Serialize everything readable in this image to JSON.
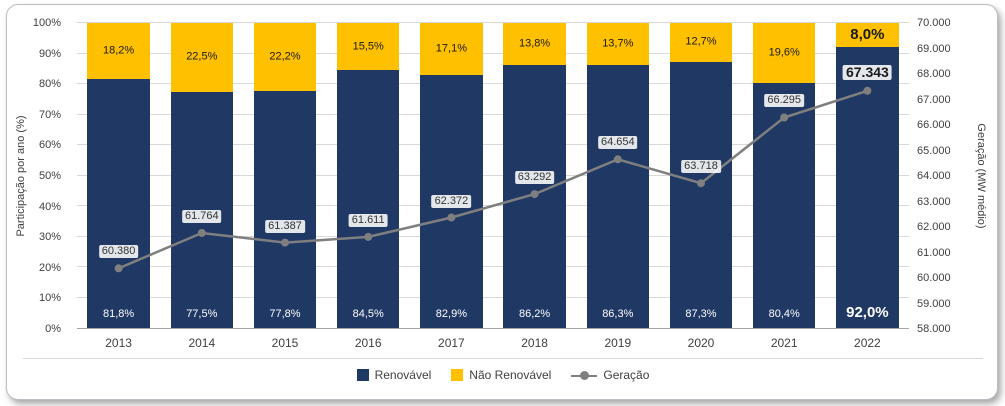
{
  "chart_data": {
    "type": "bar",
    "subtype": "stacked-percent-with-line",
    "categories": [
      "2013",
      "2014",
      "2015",
      "2016",
      "2017",
      "2018",
      "2019",
      "2020",
      "2021",
      "2022"
    ],
    "series": [
      {
        "name": "Renovável",
        "type": "bar",
        "color": "#1f3864",
        "values": [
          81.8,
          77.5,
          77.8,
          84.5,
          82.9,
          86.2,
          86.3,
          87.3,
          80.4,
          92.0
        ],
        "labels": [
          "81,8%",
          "77,5%",
          "77,8%",
          "84,5%",
          "82,9%",
          "86,2%",
          "86,3%",
          "87,3%",
          "80,4%",
          "92,0%"
        ]
      },
      {
        "name": "Não Renovável",
        "type": "bar",
        "color": "#ffc000",
        "values": [
          18.2,
          22.5,
          22.2,
          15.5,
          17.1,
          13.8,
          13.7,
          12.7,
          19.6,
          8.0
        ],
        "labels": [
          "18,2%",
          "22,5%",
          "22,2%",
          "15,5%",
          "17,1%",
          "13,8%",
          "13,7%",
          "12,7%",
          "19,6%",
          "8,0%"
        ]
      },
      {
        "name": "Geração",
        "type": "line",
        "color": "#7f7f7f",
        "values": [
          60380,
          61764,
          61387,
          61611,
          62372,
          63292,
          64654,
          63718,
          66295,
          67343
        ],
        "labels": [
          "60.380",
          "61.764",
          "61.387",
          "61.611",
          "62.372",
          "63.292",
          "64.654",
          "63.718",
          "66.295",
          "67.343"
        ]
      }
    ],
    "ylabel_left": "Participação por ano (%)",
    "ylabel_right": "Geração (MW médio)",
    "ylim_left": [
      0,
      100
    ],
    "ylim_right": [
      58000,
      70000
    ],
    "y_left_ticks": [
      "0%",
      "10%",
      "20%",
      "30%",
      "40%",
      "50%",
      "60%",
      "70%",
      "80%",
      "90%",
      "100%"
    ],
    "y_right_ticks": [
      "58.000",
      "59.000",
      "60.000",
      "61.000",
      "62.000",
      "63.000",
      "64.000",
      "65.000",
      "66.000",
      "67.000",
      "68.000",
      "69.000",
      "70.000"
    ],
    "grid": true,
    "legend_position": "bottom",
    "emphasis_index": 9,
    "colors": {
      "gridline": "#d9d9d9",
      "axis_line": "#a6a6a6",
      "tick_text": "#404040"
    }
  }
}
